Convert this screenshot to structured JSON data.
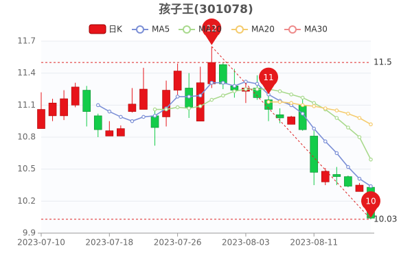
{
  "chart_data": {
    "type": "candlestick",
    "title": "孩子王(301078)",
    "categories": [
      "2023-07-10",
      null,
      null,
      null,
      null,
      null,
      "2023-07-18",
      null,
      null,
      null,
      null,
      null,
      "2023-07-26",
      null,
      null,
      null,
      null,
      null,
      "2023-08-03",
      null,
      null,
      null,
      null,
      null,
      "2023-08-11",
      null,
      null,
      null,
      null,
      null
    ],
    "candle_name": "日K",
    "up_color": "#e7141a",
    "down_color": "#14cc4a",
    "open": [
      10.88,
      11.0,
      11.0,
      11.1,
      11.24,
      11.0,
      10.81,
      10.81,
      11.04,
      11.06,
      11.0,
      10.99,
      11.24,
      11.26,
      10.95,
      11.3,
      11.48,
      11.28,
      11.23,
      11.26,
      11.15,
      11.01,
      10.92,
      11.1,
      10.81,
      10.38,
      10.45,
      10.43,
      10.29,
      10.33
    ],
    "close": [
      11.06,
      11.12,
      11.16,
      11.27,
      11.04,
      10.87,
      10.86,
      10.88,
      11.11,
      11.25,
      10.89,
      11.24,
      11.42,
      11.08,
      11.31,
      11.5,
      11.3,
      11.24,
      11.26,
      11.17,
      11.06,
      10.98,
      10.99,
      10.87,
      10.47,
      10.48,
      10.43,
      10.34,
      10.35,
      10.04
    ],
    "high": [
      11.22,
      11.16,
      11.24,
      11.31,
      11.28,
      11.02,
      10.95,
      10.91,
      11.26,
      11.45,
      11.06,
      11.33,
      11.49,
      11.4,
      11.46,
      11.65,
      11.5,
      11.44,
      11.33,
      11.38,
      11.19,
      11.07,
      11.0,
      11.17,
      10.86,
      10.51,
      10.52,
      10.44,
      10.37,
      10.34
    ],
    "low": [
      10.88,
      10.95,
      10.96,
      11.08,
      10.9,
      10.8,
      10.81,
      10.81,
      11.03,
      11.06,
      10.72,
      10.9,
      11.19,
      10.98,
      10.95,
      11.26,
      11.25,
      11.17,
      11.12,
      11.15,
      10.95,
      10.93,
      10.92,
      10.86,
      10.35,
      10.35,
      10.35,
      10.33,
      10.29,
      10.03
    ],
    "series": [
      {
        "name": "MA5",
        "color": "#7b8fd6",
        "values": [
          null,
          null,
          null,
          null,
          null,
          11.1,
          11.04,
          10.99,
          10.95,
          10.99,
          11.0,
          11.07,
          11.18,
          11.18,
          11.19,
          11.31,
          11.31,
          11.28,
          11.32,
          11.3,
          11.2,
          11.14,
          11.1,
          11.02,
          10.88,
          10.76,
          10.65,
          10.52,
          10.41,
          10.34
        ]
      },
      {
        "name": "MA10",
        "color": "#a8d98c",
        "values": [
          null,
          null,
          null,
          null,
          null,
          null,
          null,
          null,
          null,
          null,
          11.06,
          11.06,
          11.08,
          11.07,
          11.09,
          11.15,
          11.19,
          11.23,
          11.25,
          11.25,
          11.25,
          11.23,
          11.2,
          11.17,
          11.12,
          11.06,
          10.98,
          10.89,
          10.8,
          10.59
        ]
      },
      {
        "name": "MA20",
        "color": "#f5cb6c",
        "values": [
          null,
          null,
          null,
          null,
          null,
          null,
          null,
          null,
          null,
          null,
          null,
          null,
          null,
          null,
          null,
          null,
          null,
          null,
          null,
          null,
          11.13,
          11.13,
          11.12,
          11.1,
          11.09,
          11.07,
          11.05,
          11.02,
          10.98,
          10.92
        ]
      },
      {
        "name": "MA30",
        "color": "#ee8a8a",
        "values": [
          null,
          null,
          null,
          null,
          null,
          null,
          null,
          null,
          null,
          null,
          null,
          null,
          null,
          null,
          null,
          null,
          null,
          null,
          null,
          null,
          null,
          null,
          null,
          null,
          null,
          null,
          null,
          null,
          null,
          null
        ]
      }
    ],
    "mark_lines": [
      11.5,
      10.03
    ],
    "pins": [
      "12",
      "11",
      "10"
    ],
    "ylim": [
      9.9,
      11.7
    ],
    "yticks": [
      9.9,
      10.2,
      10.5,
      10.8,
      11.1,
      11.4,
      11.7
    ],
    "grid": true
  }
}
